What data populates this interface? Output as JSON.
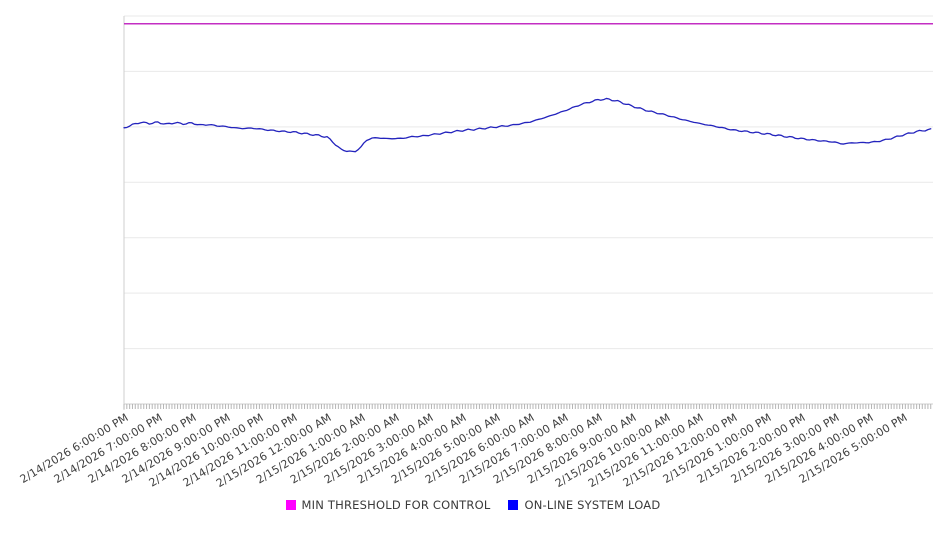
{
  "chart_data": {
    "type": "line",
    "title": "",
    "x_labels": [
      "2/14/2026 6:00:00 PM",
      "2/14/2026 7:00:00 PM",
      "2/14/2026 8:00:00 PM",
      "2/14/2026 9:00:00 PM",
      "2/14/2026 10:00:00 PM",
      "2/14/2026 11:00:00 PM",
      "2/15/2026 12:00:00 AM",
      "2/15/2026 1:00:00 AM",
      "2/15/2026 2:00:00 AM",
      "2/15/2026 3:00:00 AM",
      "2/15/2026 4:00:00 AM",
      "2/15/2026 5:00:00 AM",
      "2/15/2026 6:00:00 AM",
      "2/15/2026 7:00:00 AM",
      "2/15/2026 8:00:00 AM",
      "2/15/2026 9:00:00 AM",
      "2/15/2026 10:00:00 AM",
      "2/15/2026 11:00:00 AM",
      "2/15/2026 12:00:00 PM",
      "2/15/2026 1:00:00 PM",
      "2/15/2026 2:00:00 PM",
      "2/15/2026 3:00:00 PM",
      "2/15/2026 4:00:00 PM",
      "2/15/2026 5:00:00 PM"
    ],
    "x_axis": {
      "label_interval_hours": 1,
      "minor_tick_interval_minutes": 5,
      "label_rotation_deg": -31,
      "data_end_hours_after_last_label": 0.9
    },
    "y_axis": {
      "tick_labels_visible": false,
      "normalized_range": [
        0,
        100
      ],
      "horizontal_gridlines": 8,
      "grid_on": true
    },
    "series": [
      {
        "name": "MIN THRESHOLD FOR CONTROL",
        "type": "threshold-line",
        "value": 98,
        "line_color": "#c32ec3",
        "legend_color": "#ff00ff"
      },
      {
        "name": "ON-LINE SYSTEM LOAD",
        "type": "line",
        "line_color": "#2323bd",
        "legend_color": "#0000ff",
        "points_hours_value": [
          [
            0,
            71.1
          ],
          [
            0.25,
            72.0
          ],
          [
            0.5,
            72.6
          ],
          [
            0.75,
            72.3
          ],
          [
            1,
            72.6
          ],
          [
            1.25,
            72.1
          ],
          [
            1.5,
            72.5
          ],
          [
            1.75,
            72.2
          ],
          [
            2,
            72.4
          ],
          [
            2.25,
            71.9
          ],
          [
            2.5,
            72.0
          ],
          [
            2.75,
            71.7
          ],
          [
            3,
            71.5
          ],
          [
            3.25,
            71.2
          ],
          [
            3.5,
            71.0
          ],
          [
            3.75,
            71.1
          ],
          [
            4,
            70.9
          ],
          [
            4.25,
            70.6
          ],
          [
            4.5,
            70.4
          ],
          [
            4.75,
            70.2
          ],
          [
            5,
            70.1
          ],
          [
            5.25,
            69.8
          ],
          [
            5.5,
            69.5
          ],
          [
            5.75,
            69.2
          ],
          [
            6,
            68.8
          ],
          [
            6.2,
            67.3
          ],
          [
            6.4,
            65.6
          ],
          [
            6.6,
            65.2
          ],
          [
            6.8,
            64.9
          ],
          [
            7,
            66.2
          ],
          [
            7.15,
            67.9
          ],
          [
            7.3,
            68.5
          ],
          [
            7.5,
            68.6
          ],
          [
            7.75,
            68.4
          ],
          [
            8,
            68.4
          ],
          [
            8.25,
            68.5
          ],
          [
            8.5,
            68.9
          ],
          [
            8.75,
            69.0
          ],
          [
            9,
            69.3
          ],
          [
            9.25,
            69.6
          ],
          [
            9.5,
            69.9
          ],
          [
            9.75,
            70.2
          ],
          [
            10,
            70.5
          ],
          [
            10.5,
            70.9
          ],
          [
            11,
            71.4
          ],
          [
            11.5,
            71.9
          ],
          [
            12,
            72.7
          ],
          [
            12.5,
            74.0
          ],
          [
            13,
            75.5
          ],
          [
            13.5,
            77.2
          ],
          [
            14,
            78.4
          ],
          [
            14.3,
            78.6
          ],
          [
            14.6,
            78.0
          ],
          [
            15,
            76.8
          ],
          [
            15.5,
            75.5
          ],
          [
            16,
            74.5
          ],
          [
            16.5,
            73.3
          ],
          [
            17,
            72.3
          ],
          [
            17.5,
            71.5
          ],
          [
            18,
            70.6
          ],
          [
            18.5,
            70.1
          ],
          [
            19,
            69.6
          ],
          [
            19.5,
            69.0
          ],
          [
            20,
            68.4
          ],
          [
            20.5,
            67.9
          ],
          [
            21,
            67.5
          ],
          [
            21.2,
            67.0
          ],
          [
            21.5,
            67.3
          ],
          [
            22,
            67.4
          ],
          [
            22.3,
            67.7
          ],
          [
            22.6,
            68.3
          ],
          [
            23,
            69.3
          ],
          [
            23.4,
            70.2
          ],
          [
            23.7,
            70.6
          ],
          [
            23.9,
            70.8
          ]
        ]
      }
    ],
    "legend": {
      "position": "bottom",
      "items": [
        {
          "label": "MIN THRESHOLD FOR CONTROL",
          "swatch_color": "#ff00ff"
        },
        {
          "label": "ON-LINE SYSTEM LOAD",
          "swatch_color": "#0000ff"
        }
      ]
    },
    "colors": {
      "gridline": "#e9e9e9",
      "axis_line": "#cfcfcf",
      "minor_tick": "#b5b5b5",
      "tick_label_text": "#3f3f3f",
      "legend_text": "#3a3a3a",
      "background": "#ffffff"
    }
  }
}
